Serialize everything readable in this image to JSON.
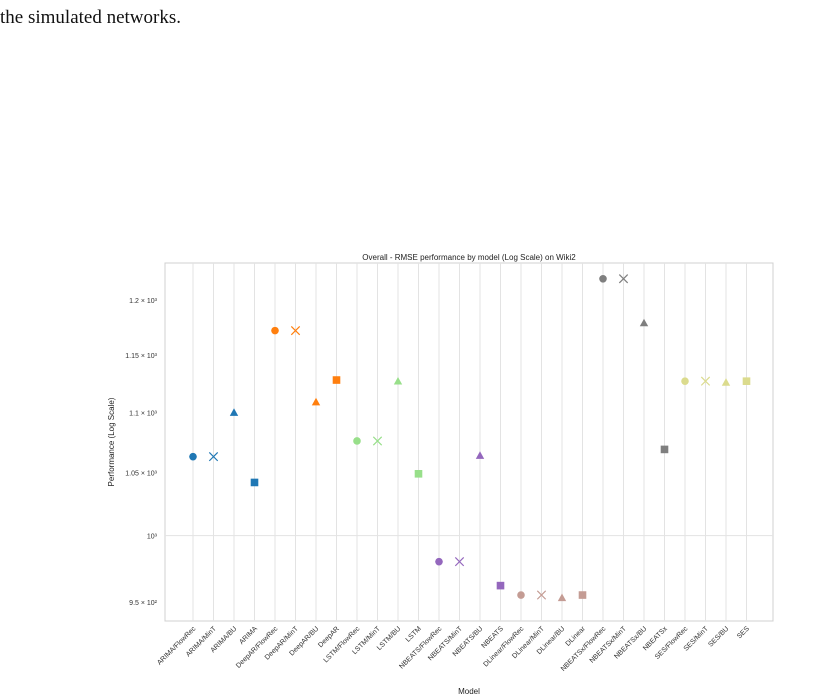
{
  "page": {
    "caption_text": "the simulated networks."
  },
  "chart_data": {
    "type": "scatter",
    "title": "Overall - RMSE performance by model (Log Scale) on Wiki2",
    "xlabel": "Model",
    "ylabel": "Performance (Log Scale)",
    "yscale": "log",
    "ylim": [
      936,
      1235
    ],
    "grid": true,
    "legend": "none",
    "y_ticks": [
      {
        "value": 950,
        "label": "9.5 × 10²"
      },
      {
        "value": 1000,
        "label": "10³"
      },
      {
        "value": 1050,
        "label": "1.05 × 10³"
      },
      {
        "value": 1100,
        "label": "1.1 × 10³"
      },
      {
        "value": 1150,
        "label": "1.15 × 10³"
      },
      {
        "value": 1200,
        "label": "1.2 × 10³"
      }
    ],
    "points": [
      {
        "model": "ARIMA/FlowRec",
        "value": 1063,
        "color": "#1f77b4",
        "marker": "circle"
      },
      {
        "model": "ARIMA/MinT",
        "value": 1063,
        "color": "#1f77b4",
        "marker": "x"
      },
      {
        "model": "ARIMA/BU",
        "value": 1100,
        "color": "#1f77b4",
        "marker": "triangle"
      },
      {
        "model": "ARIMA",
        "value": 1042,
        "color": "#1f77b4",
        "marker": "square"
      },
      {
        "model": "DeepAR/FlowRec",
        "value": 1172,
        "color": "#ff7f0e",
        "marker": "circle"
      },
      {
        "model": "DeepAR/MinT",
        "value": 1172,
        "color": "#ff7f0e",
        "marker": "x"
      },
      {
        "model": "DeepAR/BU",
        "value": 1109,
        "color": "#ff7f0e",
        "marker": "triangle"
      },
      {
        "model": "DeepAR",
        "value": 1128,
        "color": "#ff7f0e",
        "marker": "square"
      },
      {
        "model": "LSTM/FlowRec",
        "value": 1076,
        "color": "#98df8a",
        "marker": "circle"
      },
      {
        "model": "LSTM/MinT",
        "value": 1076,
        "color": "#98df8a",
        "marker": "x"
      },
      {
        "model": "LSTM/BU",
        "value": 1127,
        "color": "#98df8a",
        "marker": "triangle"
      },
      {
        "model": "LSTM",
        "value": 1049,
        "color": "#98df8a",
        "marker": "square"
      },
      {
        "model": "NBEATS/FlowRec",
        "value": 980,
        "color": "#9467bd",
        "marker": "circle"
      },
      {
        "model": "NBEATS/MinT",
        "value": 980,
        "color": "#9467bd",
        "marker": "x"
      },
      {
        "model": "NBEATS/BU",
        "value": 1064,
        "color": "#9467bd",
        "marker": "triangle"
      },
      {
        "model": "NBEATS",
        "value": 962,
        "color": "#9467bd",
        "marker": "square"
      },
      {
        "model": "DLinear/FlowRec",
        "value": 955,
        "color": "#c49c94",
        "marker": "circle"
      },
      {
        "model": "DLinear/MinT",
        "value": 955,
        "color": "#c49c94",
        "marker": "x"
      },
      {
        "model": "DLinear/BU",
        "value": 953,
        "color": "#c49c94",
        "marker": "triangle"
      },
      {
        "model": "DLinear",
        "value": 955,
        "color": "#c49c94",
        "marker": "square"
      },
      {
        "model": "NBEATSx/FlowRec",
        "value": 1220,
        "color": "#7f7f7f",
        "marker": "circle"
      },
      {
        "model": "NBEATSx/MinT",
        "value": 1220,
        "color": "#7f7f7f",
        "marker": "x"
      },
      {
        "model": "NBEATSx/BU",
        "value": 1179,
        "color": "#7f7f7f",
        "marker": "triangle"
      },
      {
        "model": "NBEATSx",
        "value": 1069,
        "color": "#7f7f7f",
        "marker": "square"
      },
      {
        "model": "SES/FlowRec",
        "value": 1127,
        "color": "#dbdb8d",
        "marker": "circle"
      },
      {
        "model": "SES/MinT",
        "value": 1127,
        "color": "#dbdb8d",
        "marker": "x"
      },
      {
        "model": "SES/BU",
        "value": 1126,
        "color": "#dbdb8d",
        "marker": "triangle"
      },
      {
        "model": "SES",
        "value": 1127,
        "color": "#dbdb8d",
        "marker": "square"
      }
    ]
  }
}
